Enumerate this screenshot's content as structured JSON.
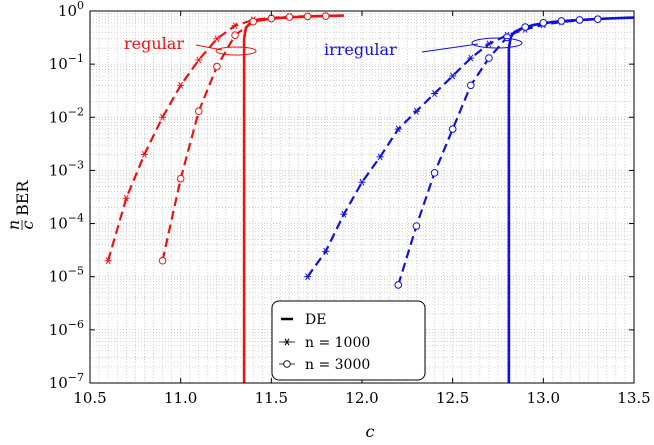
{
  "chart_data": {
    "type": "line",
    "xlabel": "c",
    "ylabel": "n/c BER",
    "ylabel_parts": {
      "numerator": "n",
      "denominator": "c",
      "text": "BER"
    },
    "xlim": [
      10.5,
      13.5
    ],
    "ylim": [
      1e-07,
      1
    ],
    "yscale": "log",
    "grid": true,
    "x_ticks": [
      10.5,
      11.0,
      11.5,
      12.0,
      12.5,
      13.0,
      13.5
    ],
    "x_tick_labels": [
      "10.5",
      "11.0",
      "11.5",
      "12.0",
      "12.5",
      "13.0",
      "13.5"
    ],
    "y_ticks": [
      1,
      0.1,
      0.01,
      0.001,
      0.0001,
      1e-05,
      1e-06,
      1e-07
    ],
    "y_tick_labels": [
      {
        "base": "10",
        "exp": "0"
      },
      {
        "base": "10",
        "exp": "−1"
      },
      {
        "base": "10",
        "exp": "−2"
      },
      {
        "base": "10",
        "exp": "−3"
      },
      {
        "base": "10",
        "exp": "−4"
      },
      {
        "base": "10",
        "exp": "−5"
      },
      {
        "base": "10",
        "exp": "−6"
      },
      {
        "base": "10",
        "exp": "−7"
      }
    ],
    "legend": {
      "placement": "bottom-center",
      "entries": [
        {
          "label": "DE",
          "style": "solid"
        },
        {
          "label": "n = 1000",
          "style": "star"
        },
        {
          "label": "n = 3000",
          "style": "circle"
        }
      ]
    },
    "annotations": [
      {
        "text": "regular",
        "color": "#ee1111"
      },
      {
        "text": "irregular",
        "color": "#1111dd"
      }
    ],
    "colors": {
      "regular": "#ee1111",
      "irregular": "#1111dd"
    },
    "series": [
      {
        "group": "regular",
        "kind": "DE",
        "style": "solid",
        "x": [
          11.35,
          11.35,
          11.36,
          11.38,
          11.42,
          11.5,
          11.6,
          11.75,
          11.9
        ],
        "y": [
          1e-07,
          0.3,
          0.48,
          0.58,
          0.66,
          0.72,
          0.76,
          0.8,
          0.82
        ]
      },
      {
        "group": "regular",
        "kind": "n=1000",
        "style": "star",
        "x": [
          10.6,
          10.7,
          10.8,
          10.9,
          11.0,
          11.1,
          11.2,
          11.3,
          11.4,
          11.5,
          11.6,
          11.7,
          11.8
        ],
        "y": [
          2e-05,
          0.0003,
          0.002,
          0.01,
          0.04,
          0.12,
          0.3,
          0.53,
          0.68,
          0.74,
          0.78,
          0.8,
          0.81
        ]
      },
      {
        "group": "regular",
        "kind": "n=3000",
        "style": "circle",
        "x": [
          10.9,
          11.0,
          11.1,
          11.2,
          11.3,
          11.4,
          11.5,
          11.6,
          11.7,
          11.8
        ],
        "y": [
          2e-05,
          0.0007,
          0.013,
          0.09,
          0.35,
          0.63,
          0.72,
          0.77,
          0.79,
          0.8
        ]
      },
      {
        "group": "irregular",
        "kind": "DE",
        "style": "solid",
        "x": [
          12.81,
          12.81,
          12.82,
          12.84,
          12.88,
          12.95,
          13.05,
          13.2,
          13.35,
          13.5
        ],
        "y": [
          1e-07,
          0.2,
          0.32,
          0.4,
          0.47,
          0.55,
          0.62,
          0.68,
          0.72,
          0.75
        ]
      },
      {
        "group": "irregular",
        "kind": "n=1000",
        "style": "star",
        "x": [
          11.7,
          11.8,
          11.9,
          12.0,
          12.1,
          12.2,
          12.3,
          12.4,
          12.5,
          12.6,
          12.7,
          12.8,
          12.9,
          13.0,
          13.1,
          13.2,
          13.3
        ],
        "y": [
          1e-05,
          3e-05,
          0.00015,
          0.0006,
          0.0018,
          0.006,
          0.013,
          0.028,
          0.06,
          0.13,
          0.24,
          0.35,
          0.45,
          0.55,
          0.62,
          0.67,
          0.7
        ]
      },
      {
        "group": "irregular",
        "kind": "n=3000",
        "style": "circle",
        "x": [
          12.2,
          12.3,
          12.4,
          12.5,
          12.6,
          12.7,
          12.8,
          12.9,
          13.0,
          13.1,
          13.2,
          13.3
        ],
        "y": [
          7e-06,
          9e-05,
          0.0009,
          0.006,
          0.04,
          0.13,
          0.32,
          0.5,
          0.6,
          0.65,
          0.68,
          0.7
        ]
      }
    ]
  }
}
